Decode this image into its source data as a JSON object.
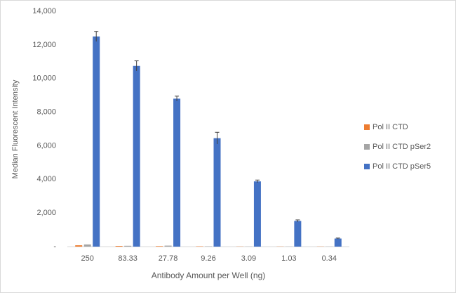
{
  "chart_data": {
    "type": "bar",
    "y_label": "Median Fluorescent Intensity",
    "x_label": "Antibody Amount per Well (ng)",
    "categories": [
      "250",
      "83.33",
      "27.78",
      "9.26",
      "3.09",
      "1.03",
      "0.34"
    ],
    "series": [
      {
        "name": "Pol II CTD",
        "color": "#ed7d31",
        "values": [
          80,
          40,
          30,
          20,
          10,
          10,
          10
        ]
      },
      {
        "name": "Pol II CTD pSer2",
        "color": "#a5a5a5",
        "values": [
          130,
          50,
          60,
          20,
          10,
          10,
          10
        ]
      },
      {
        "name": "Pol II CTD pSer5",
        "color": "#4472c4",
        "values": [
          12500,
          10750,
          8800,
          6450,
          3880,
          1530,
          480
        ],
        "errors": [
          300,
          300,
          150,
          350,
          80,
          60,
          30
        ]
      }
    ],
    "ylim": [
      0,
      14000
    ],
    "yticks": [
      {
        "value": 0,
        "label": "-"
      },
      {
        "value": 2000,
        "label": "2,000"
      },
      {
        "value": 4000,
        "label": "4,000"
      },
      {
        "value": 6000,
        "label": "6,000"
      },
      {
        "value": 8000,
        "label": "8,000"
      },
      {
        "value": 10000,
        "label": "10,000"
      },
      {
        "value": 12000,
        "label": "12,000"
      },
      {
        "value": 14000,
        "label": "14,000"
      }
    ],
    "legend": "right"
  }
}
